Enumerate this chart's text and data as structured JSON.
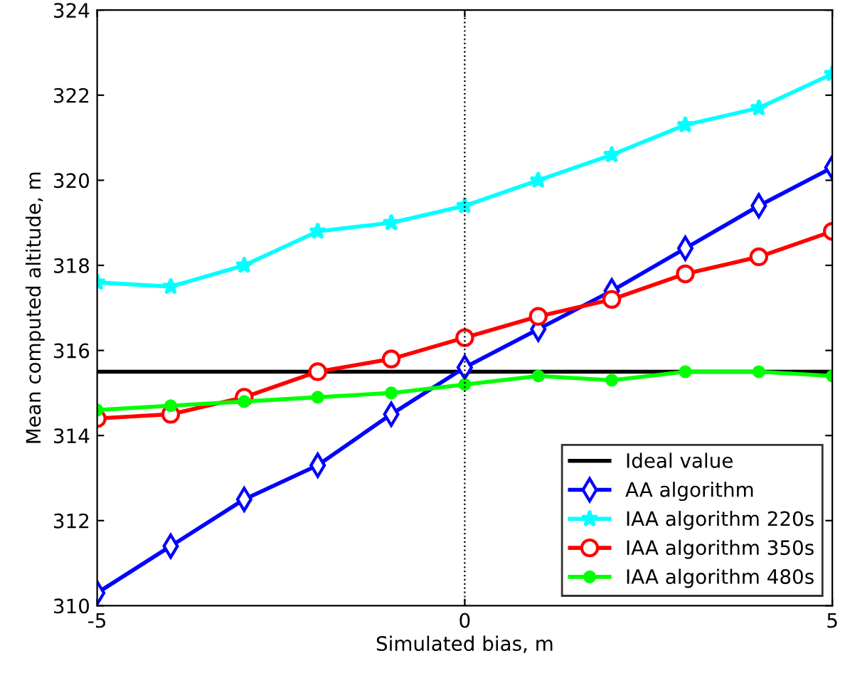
{
  "chart_data": {
    "type": "line",
    "xlabel": "Simulated bias, m",
    "ylabel": "Mean computed altitude, m",
    "xlim": [
      -5,
      5
    ],
    "xticks": [
      -5,
      0,
      5
    ],
    "ylim": [
      310,
      324
    ],
    "yticks": [
      310,
      312,
      314,
      316,
      318,
      320,
      322,
      324
    ],
    "ref_lines": [
      {
        "axis": "x",
        "value": 0,
        "color": "#000000",
        "line_style": "dotted"
      }
    ],
    "legend": "bottom right",
    "x": [
      -5,
      -4,
      -3,
      -2,
      -1,
      0,
      1,
      2,
      3,
      4,
      5
    ],
    "series": [
      {
        "name": "Ideal value",
        "color": "#000000",
        "marker": "none",
        "x": [
          -5,
          5
        ],
        "values": [
          315.5,
          315.5
        ]
      },
      {
        "name": "AA algorithm",
        "color": "#0000ff",
        "marker": "diamond",
        "values": [
          310.3,
          311.4,
          312.5,
          313.3,
          314.5,
          315.6,
          316.5,
          317.4,
          318.4,
          319.4,
          320.3
        ]
      },
      {
        "name": "IAA algorithm 220s",
        "color": "#00ffff",
        "marker": "star",
        "values": [
          317.6,
          317.5,
          318.0,
          318.8,
          319.0,
          319.4,
          320.0,
          320.6,
          321.3,
          321.7,
          322.5
        ]
      },
      {
        "name": "IAA algorithm 350s",
        "color": "#ff0000",
        "marker": "circle",
        "values": [
          314.4,
          314.5,
          314.9,
          315.5,
          315.8,
          316.3,
          316.8,
          317.2,
          317.8,
          318.2,
          318.8
        ]
      },
      {
        "name": "IAA algorithm 480s",
        "color": "#00ff00",
        "marker": "circle",
        "values": [
          314.6,
          314.7,
          314.8,
          314.9,
          315.0,
          315.2,
          315.4,
          315.3,
          315.5,
          315.5,
          315.4
        ]
      }
    ]
  }
}
